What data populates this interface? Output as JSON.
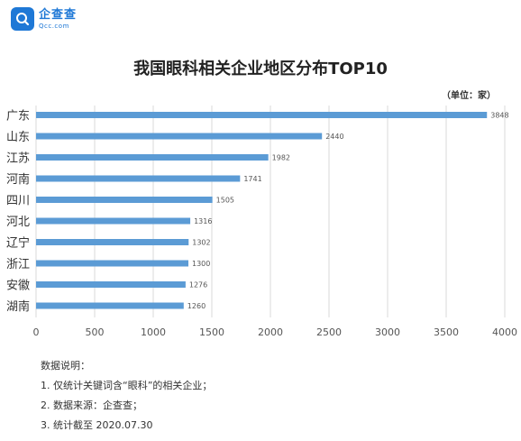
{
  "logo": {
    "name": "企查查",
    "sub": "Qcc.com"
  },
  "title": "我国眼科相关企业地区分布TOP10",
  "unit": "（单位：家）",
  "chart_data": {
    "type": "bar",
    "orientation": "horizontal",
    "title": "我国眼科相关企业地区分布TOP10",
    "unit": "（单位：家）",
    "categories": [
      "广东",
      "山东",
      "江苏",
      "河南",
      "四川",
      "河北",
      "辽宁",
      "浙江",
      "安徽",
      "湖南"
    ],
    "values": [
      3848,
      2440,
      1982,
      1741,
      1505,
      1316,
      1302,
      1300,
      1276,
      1260
    ],
    "xlim": [
      0,
      4000
    ],
    "xticks": [
      0,
      500,
      1000,
      1500,
      2000,
      2500,
      3000,
      3500,
      4000
    ],
    "grid": true,
    "bar_color": "#5b9bd5"
  },
  "notes": {
    "heading": "数据说明：",
    "items": [
      "1. 仅统计关键词含“眼科”的相关企业；",
      "2. 数据来源：企查查；",
      "3. 统计截至 2020.07.30"
    ]
  }
}
